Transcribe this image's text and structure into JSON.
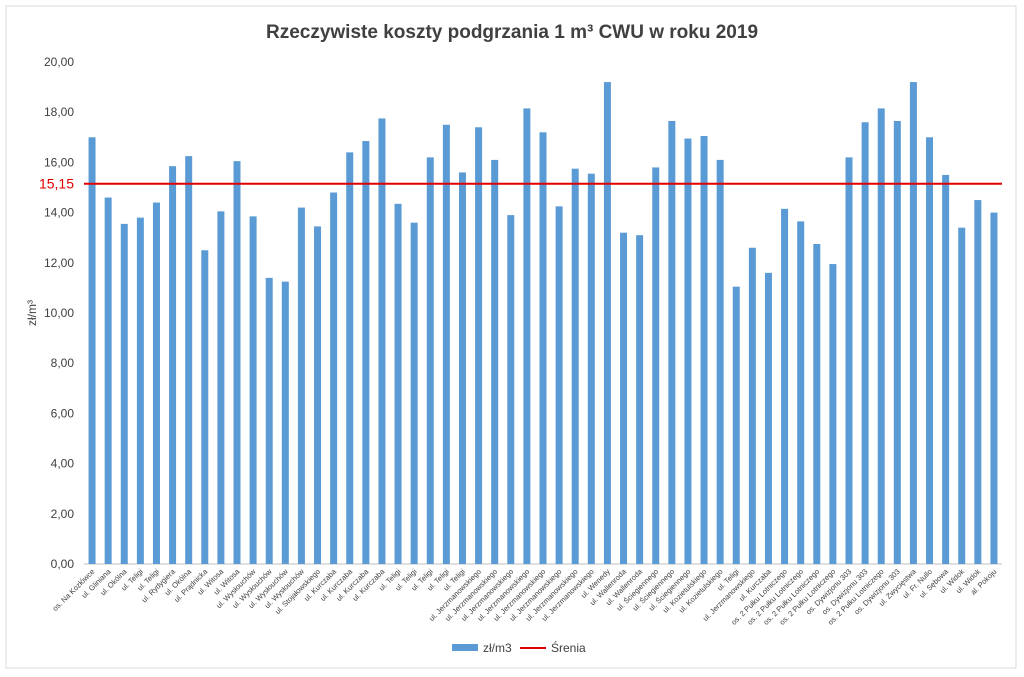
{
  "chart_data": {
    "type": "bar",
    "title": "Rzeczywiste koszty podgrzania 1 m³ CWU w roku 2019",
    "y_label": "zł/m³",
    "categories": [
      "os. Na Kozłówce",
      "ul. Gliniana",
      "ul. Okólna",
      "ul. Teligi",
      "ul. Teligi",
      "ul. Rydygiera",
      "ul. Okólna",
      "ul. Prądnicka",
      "ul. Witosa",
      "ul. Witosa",
      "ul. Wysłouchów",
      "ul. Wysłouchów",
      "ul. Wysłouchów",
      "ul. Wysłouchów",
      "ul. Stojałowskiego",
      "ul. Kurczaba",
      "ul. Kurczaba",
      "ul. Kurczaba",
      "ul. Kurczaba",
      "ul. Teligi",
      "ul. Teligi",
      "ul. Teligi",
      "ul. Teligi",
      "ul. Teligi",
      "ul. Jerzmanowskiego",
      "ul. Jerzmanowskiego",
      "ul. Jerzmanowskiego",
      "ul. Jerzmanowskiego",
      "ul. Jerzmanowskiego",
      "ul. Jerzmanowskiego",
      "ul. Jerzmanowskiego",
      "ul. Jerzmanowskiego",
      "ul. Wenedy",
      "ul. Wallenroda",
      "ul. Wallenroda",
      "ul. Ściegiennego",
      "ul. Ściegiennego",
      "ul. Ściegiennego",
      "ul. Kozietulskiego",
      "ul. Kozietulskiego",
      "ul. Teligi",
      "ul. Jerzmanowskiego",
      "ul. Kurczaba",
      "os. 2 Pułku Lotniczego",
      "os. 2 Pułku Lotniczego",
      "os. 2 Pułku Lotniczego",
      "os. 2 Pułku Lotniczego",
      "os. Dywizjonu 303",
      "os. Dywizjonu 303",
      "os. 2 Pułku Lotniczego",
      "os. Dywizjonu 303",
      "ul. Zwycięstwa",
      "ul. Fr. Nullo",
      "ul. Sębowa",
      "ul. Widok",
      "ul. Widok",
      "al. Pokoju"
    ],
    "series": [
      {
        "name": "zł/m3",
        "color": "#5b9bd5",
        "values": [
          17.0,
          14.6,
          13.55,
          13.8,
          14.4,
          15.85,
          16.25,
          12.5,
          14.05,
          16.05,
          13.85,
          11.4,
          11.25,
          14.2,
          13.45,
          14.8,
          16.4,
          16.85,
          17.75,
          14.35,
          13.6,
          16.2,
          17.5,
          15.6,
          17.4,
          16.1,
          13.9,
          18.15,
          17.2,
          14.25,
          15.75,
          15.55,
          19.2,
          13.2,
          13.1,
          15.8,
          17.65,
          16.95,
          17.05,
          16.1,
          11.05,
          12.6,
          11.6,
          14.15,
          13.65,
          12.75,
          11.95,
          16.2,
          17.6,
          18.15,
          17.65,
          19.2,
          17.0,
          15.5,
          13.4,
          14.5,
          14.0
        ]
      }
    ],
    "average": {
      "name": "Śrenia",
      "value": 15.15,
      "label": "15,15",
      "color": "#e00000"
    },
    "ylim": [
      0,
      20
    ],
    "yticks": [
      {
        "value": 0,
        "label": "0,00"
      },
      {
        "value": 2,
        "label": "2,00"
      },
      {
        "value": 4,
        "label": "4,00"
      },
      {
        "value": 6,
        "label": "6,00"
      },
      {
        "value": 8,
        "label": "8,00"
      },
      {
        "value": 10,
        "label": "10,00"
      },
      {
        "value": 12,
        "label": "12,00"
      },
      {
        "value": 14,
        "label": "14,00"
      },
      {
        "value": 16,
        "label": "16,00"
      },
      {
        "value": 18,
        "label": "18,00"
      },
      {
        "value": 20,
        "label": "20,00"
      }
    ],
    "grid": false
  }
}
